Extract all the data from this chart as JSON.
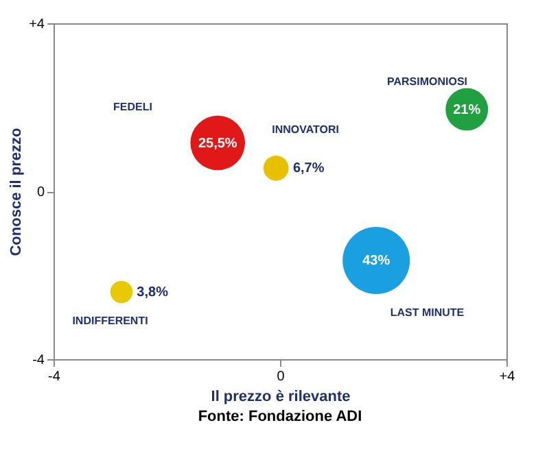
{
  "chart_data": {
    "type": "bubble",
    "xlabel": "Il prezzo è rilevante",
    "ylabel": "Conosce il prezzo",
    "x": [
      -1.1,
      -0.07,
      3.3,
      1.7,
      -2.8
    ],
    "values": [
      1.15,
      0.55,
      1.95,
      -1.65,
      -2.4
    ],
    "sizes": [
      0.66,
      0.14,
      0.4,
      1,
      0.11
    ],
    "colors": [
      "#e01818",
      "#e8c000",
      "#20a040",
      "#1aa0e0",
      "#e8c800"
    ],
    "xlim": [
      -4,
      4
    ],
    "ylim": [
      -4,
      4
    ],
    "xticks": [
      -4,
      0,
      {
        "value": 4,
        "label": "+4"
      }
    ],
    "yticks": [
      -4,
      0,
      {
        "value": 4,
        "label": "+4"
      }
    ],
    "grid": false,
    "annotations": [
      {
        "text": "25,5%",
        "x": -1.1,
        "y": 1.15
      },
      {
        "text": "6,7%",
        "x": -0.07,
        "y": 0.55
      },
      {
        "text": "21%",
        "x": 3.3,
        "y": 1.95
      },
      {
        "text": "43%",
        "x": 1.7,
        "y": -1.65
      },
      {
        "text": "3,8%",
        "x": -2.8,
        "y": -2.4
      },
      "FEDELI",
      "INNOVATORI",
      "PARSIMONIOSI",
      "INDIFFERENTI",
      "LAST MINUTE",
      "Fonte: Fondazione ADI"
    ]
  }
}
